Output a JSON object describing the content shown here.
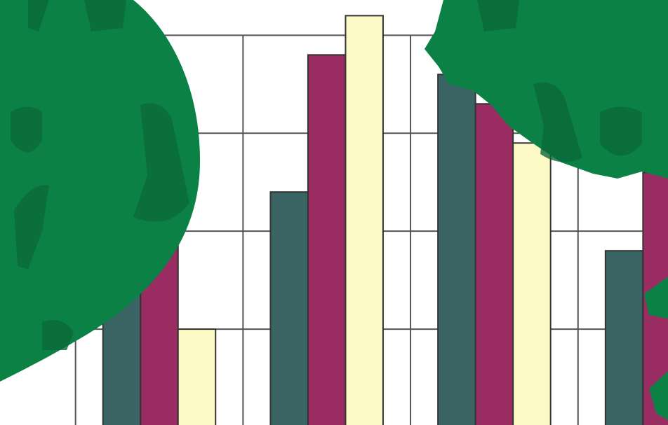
{
  "chart_data": {
    "type": "bar",
    "categories": [
      null,
      null,
      null,
      null
    ],
    "series": [
      {
        "color": "#3b6565",
        "values": [
          1.5,
          2.4,
          3.6,
          1.8
        ]
      },
      {
        "color": "#992d62",
        "values": [
          2.0,
          3.8,
          3.3,
          2.6
        ]
      },
      {
        "color": "#fdfac6",
        "values": [
          1.0,
          4.2,
          2.9,
          null
        ]
      }
    ],
    "ylim": [
      0,
      4.36
    ],
    "yticks": [
      1,
      2,
      3,
      4
    ],
    "grid": true
  }
}
